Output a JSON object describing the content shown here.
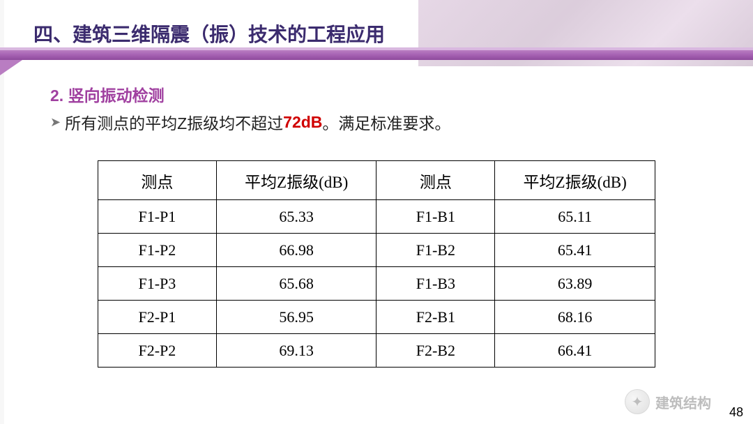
{
  "header": {
    "main_title": "四、建筑三维隔震（振）技术的工程应用",
    "sub_title": "2. 竖向振动检测",
    "desc_prefix": "所有测点的平均Z振级均不超过",
    "desc_highlight": "72dB",
    "desc_suffix": " 。满足标准要求。",
    "bullet": "➤"
  },
  "table": {
    "columns": [
      "测点",
      "平均Z振级(dB)",
      "测点",
      "平均Z振级(dB)"
    ],
    "rows": [
      [
        "F1-P1",
        "65.33",
        "F1-B1",
        "65.11"
      ],
      [
        "F1-P2",
        "66.98",
        "F1-B2",
        "65.41"
      ],
      [
        "F1-P3",
        "65.68",
        "F1-B3",
        "63.89"
      ],
      [
        "F2-P1",
        "56.95",
        "F2-B1",
        "68.16"
      ],
      [
        "F2-P2",
        "69.13",
        "F2-B2",
        "66.41"
      ]
    ],
    "border_color": "#000000",
    "header_fontsize": 23,
    "cell_fontsize": 22
  },
  "footer": {
    "page_number": "48",
    "watermark_text": "建筑结构",
    "watermark_icon": "✦"
  },
  "colors": {
    "title_color": "#3b2b6e",
    "subtitle_color": "#a040a0",
    "highlight_color": "#d00000",
    "band_start": "#b97dc2",
    "band_end": "#8e4a9c",
    "background": "#ffffff"
  }
}
